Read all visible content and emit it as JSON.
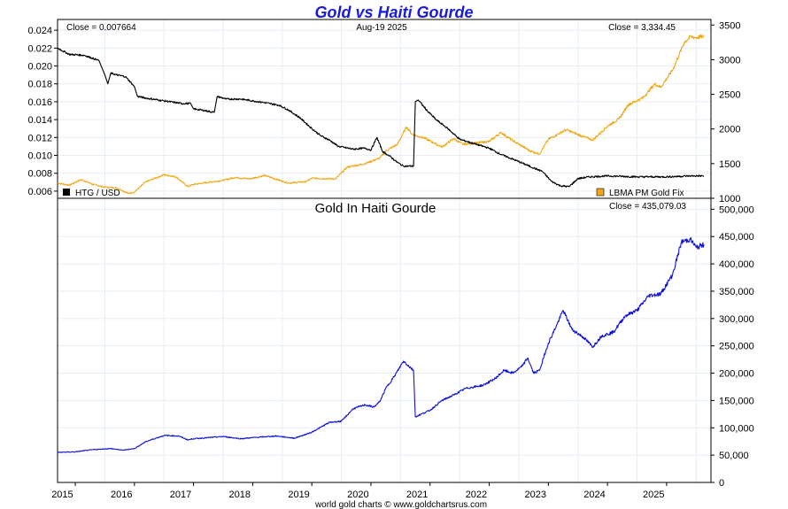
{
  "title": "Gold vs Haiti Gourde",
  "footer": "world gold charts © www.goldchartsrus.com",
  "colors": {
    "title": "#1a1adb",
    "htg_line": "#000000",
    "gold_line": "#f0a818",
    "gold_htg_line": "#1010d8",
    "grid": "#e6eef4",
    "frame": "#000000"
  },
  "chart_data": [
    {
      "type": "line",
      "panel": "top",
      "header_left": "Close = 0.007664",
      "header_center": "Aug-19  2025",
      "header_right": "Close = 3,334.45",
      "legend": [
        {
          "label": "HTG / USD",
          "color": "#000000",
          "axis": "left",
          "position": "bottom-left"
        },
        {
          "label": "LBMA PM Gold Fix",
          "color": "#f0a818",
          "axis": "right",
          "position": "bottom-right"
        }
      ],
      "x_range": [
        2014.7,
        2025.75
      ],
      "x_ticks": [
        "2015",
        "2016",
        "2017",
        "2018",
        "2019",
        "2020",
        "2021",
        "2022",
        "2023",
        "2024",
        "2025"
      ],
      "y_left": {
        "range": [
          0.0052,
          0.0252
        ],
        "ticks": [
          "0.006",
          "0.008",
          "0.010",
          "0.012",
          "0.014",
          "0.016",
          "0.018",
          "0.020",
          "0.022",
          "0.024"
        ]
      },
      "y_right": {
        "range": [
          1000,
          3580
        ],
        "ticks": [
          "1000",
          "1500",
          "2000",
          "2500",
          "3000",
          "3500"
        ]
      },
      "series": [
        {
          "name": "HTG / USD",
          "axis": "left",
          "points": [
            [
              2014.7,
              0.022
            ],
            [
              2014.9,
              0.0213
            ],
            [
              2015.15,
              0.0212
            ],
            [
              2015.4,
              0.0206
            ],
            [
              2015.45,
              0.0198
            ],
            [
              2015.5,
              0.019
            ],
            [
              2015.55,
              0.018
            ],
            [
              2015.6,
              0.0192
            ],
            [
              2015.7,
              0.019
            ],
            [
              2015.85,
              0.0188
            ],
            [
              2016.0,
              0.0177
            ],
            [
              2016.05,
              0.0166
            ],
            [
              2016.2,
              0.0164
            ],
            [
              2016.5,
              0.0161
            ],
            [
              2016.8,
              0.0158
            ],
            [
              2016.95,
              0.0158
            ],
            [
              2017.0,
              0.0152
            ],
            [
              2017.2,
              0.015
            ],
            [
              2017.35,
              0.0148
            ],
            [
              2017.4,
              0.0166
            ],
            [
              2017.55,
              0.0163
            ],
            [
              2017.8,
              0.0163
            ],
            [
              2018.0,
              0.0161
            ],
            [
              2018.2,
              0.0159
            ],
            [
              2018.45,
              0.0156
            ],
            [
              2018.6,
              0.0151
            ],
            [
              2018.8,
              0.0142
            ],
            [
              2019.0,
              0.013
            ],
            [
              2019.15,
              0.0122
            ],
            [
              2019.3,
              0.0117
            ],
            [
              2019.45,
              0.011
            ],
            [
              2019.7,
              0.0107
            ],
            [
              2019.9,
              0.0108
            ],
            [
              2020.0,
              0.0106
            ],
            [
              2020.1,
              0.012
            ],
            [
              2020.2,
              0.0104
            ],
            [
              2020.3,
              0.01
            ],
            [
              2020.45,
              0.0092
            ],
            [
              2020.55,
              0.0088
            ],
            [
              2020.72,
              0.0088
            ],
            [
              2020.75,
              0.016
            ],
            [
              2020.8,
              0.0162
            ],
            [
              2020.95,
              0.015
            ],
            [
              2021.1,
              0.014
            ],
            [
              2021.3,
              0.013
            ],
            [
              2021.5,
              0.0118
            ],
            [
              2021.8,
              0.0112
            ],
            [
              2022.0,
              0.0108
            ],
            [
              2022.2,
              0.0101
            ],
            [
              2022.5,
              0.0093
            ],
            [
              2022.75,
              0.0086
            ],
            [
              2022.9,
              0.0082
            ],
            [
              2023.05,
              0.0071
            ],
            [
              2023.2,
              0.0066
            ],
            [
              2023.35,
              0.0065
            ],
            [
              2023.5,
              0.0074
            ],
            [
              2023.7,
              0.0076
            ],
            [
              2024.0,
              0.0077
            ],
            [
              2024.5,
              0.0076
            ],
            [
              2025.0,
              0.0076
            ],
            [
              2025.4,
              0.0077
            ],
            [
              2025.63,
              0.0077
            ]
          ]
        },
        {
          "name": "LBMA PM Gold Fix",
          "axis": "right",
          "points": [
            [
              2014.7,
              1220
            ],
            [
              2014.9,
              1190
            ],
            [
              2015.1,
              1270
            ],
            [
              2015.3,
              1200
            ],
            [
              2015.5,
              1160
            ],
            [
              2015.7,
              1150
            ],
            [
              2015.9,
              1070
            ],
            [
              2016.0,
              1090
            ],
            [
              2016.2,
              1240
            ],
            [
              2016.5,
              1340
            ],
            [
              2016.7,
              1310
            ],
            [
              2016.9,
              1170
            ],
            [
              2017.0,
              1200
            ],
            [
              2017.5,
              1260
            ],
            [
              2017.7,
              1300
            ],
            [
              2017.95,
              1280
            ],
            [
              2018.2,
              1330
            ],
            [
              2018.6,
              1220
            ],
            [
              2018.9,
              1240
            ],
            [
              2019.0,
              1290
            ],
            [
              2019.4,
              1280
            ],
            [
              2019.6,
              1450
            ],
            [
              2019.9,
              1500
            ],
            [
              2020.15,
              1580
            ],
            [
              2020.25,
              1680
            ],
            [
              2020.45,
              1780
            ],
            [
              2020.6,
              2030
            ],
            [
              2020.7,
              1920
            ],
            [
              2020.9,
              1870
            ],
            [
              2021.2,
              1740
            ],
            [
              2021.4,
              1860
            ],
            [
              2021.55,
              1780
            ],
            [
              2021.8,
              1800
            ],
            [
              2022.0,
              1820
            ],
            [
              2022.2,
              1950
            ],
            [
              2022.4,
              1830
            ],
            [
              2022.7,
              1680
            ],
            [
              2022.85,
              1640
            ],
            [
              2023.0,
              1850
            ],
            [
              2023.3,
              1990
            ],
            [
              2023.5,
              1920
            ],
            [
              2023.75,
              1840
            ],
            [
              2024.0,
              2040
            ],
            [
              2024.2,
              2150
            ],
            [
              2024.35,
              2350
            ],
            [
              2024.6,
              2450
            ],
            [
              2024.8,
              2650
            ],
            [
              2024.9,
              2600
            ],
            [
              2025.1,
              2850
            ],
            [
              2025.3,
              3250
            ],
            [
              2025.4,
              3330
            ],
            [
              2025.5,
              3320
            ],
            [
              2025.63,
              3334
            ]
          ]
        }
      ]
    },
    {
      "type": "line",
      "panel": "bottom",
      "title": "Gold In Haiti Gourde",
      "header_right": "Close = 435,079.03",
      "x_range": [
        2014.7,
        2025.75
      ],
      "x_ticks": [
        "2015",
        "2016",
        "2017",
        "2018",
        "2019",
        "2020",
        "2021",
        "2022",
        "2023",
        "2024",
        "2025"
      ],
      "y_right": {
        "range": [
          0,
          520000
        ],
        "ticks": [
          "0",
          "50,000",
          "100,000",
          "150,000",
          "200,000",
          "250,000",
          "300,000",
          "350,000",
          "400,000",
          "450,000",
          "500,000"
        ]
      },
      "series": [
        {
          "name": "Gold In Haiti Gourde",
          "axis": "right",
          "points": [
            [
              2014.7,
              55000
            ],
            [
              2015.0,
              56000
            ],
            [
              2015.3,
              60000
            ],
            [
              2015.6,
              62000
            ],
            [
              2015.8,
              59000
            ],
            [
              2016.0,
              62000
            ],
            [
              2016.2,
              75000
            ],
            [
              2016.5,
              86000
            ],
            [
              2016.75,
              85000
            ],
            [
              2016.9,
              78000
            ],
            [
              2017.0,
              80000
            ],
            [
              2017.5,
              84000
            ],
            [
              2017.8,
              80000
            ],
            [
              2018.0,
              82000
            ],
            [
              2018.4,
              85000
            ],
            [
              2018.7,
              81000
            ],
            [
              2018.9,
              88000
            ],
            [
              2019.0,
              92000
            ],
            [
              2019.3,
              110000
            ],
            [
              2019.5,
              112000
            ],
            [
              2019.7,
              135000
            ],
            [
              2019.9,
              142000
            ],
            [
              2020.05,
              138000
            ],
            [
              2020.15,
              148000
            ],
            [
              2020.25,
              172000
            ],
            [
              2020.4,
              195000
            ],
            [
              2020.55,
              222000
            ],
            [
              2020.72,
              205000
            ],
            [
              2020.75,
              120000
            ],
            [
              2020.85,
              125000
            ],
            [
              2021.0,
              132000
            ],
            [
              2021.2,
              150000
            ],
            [
              2021.4,
              160000
            ],
            [
              2021.6,
              172000
            ],
            [
              2021.9,
              178000
            ],
            [
              2022.1,
              190000
            ],
            [
              2022.25,
              205000
            ],
            [
              2022.4,
              200000
            ],
            [
              2022.55,
              212000
            ],
            [
              2022.65,
              228000
            ],
            [
              2022.75,
              200000
            ],
            [
              2022.85,
              205000
            ],
            [
              2023.0,
              255000
            ],
            [
              2023.15,
              290000
            ],
            [
              2023.25,
              315000
            ],
            [
              2023.4,
              280000
            ],
            [
              2023.6,
              265000
            ],
            [
              2023.75,
              248000
            ],
            [
              2023.9,
              268000
            ],
            [
              2024.1,
              275000
            ],
            [
              2024.3,
              305000
            ],
            [
              2024.5,
              315000
            ],
            [
              2024.7,
              342000
            ],
            [
              2024.9,
              345000
            ],
            [
              2025.1,
              380000
            ],
            [
              2025.25,
              440000
            ],
            [
              2025.4,
              445000
            ],
            [
              2025.5,
              430000
            ],
            [
              2025.63,
              435079
            ]
          ]
        }
      ]
    }
  ]
}
